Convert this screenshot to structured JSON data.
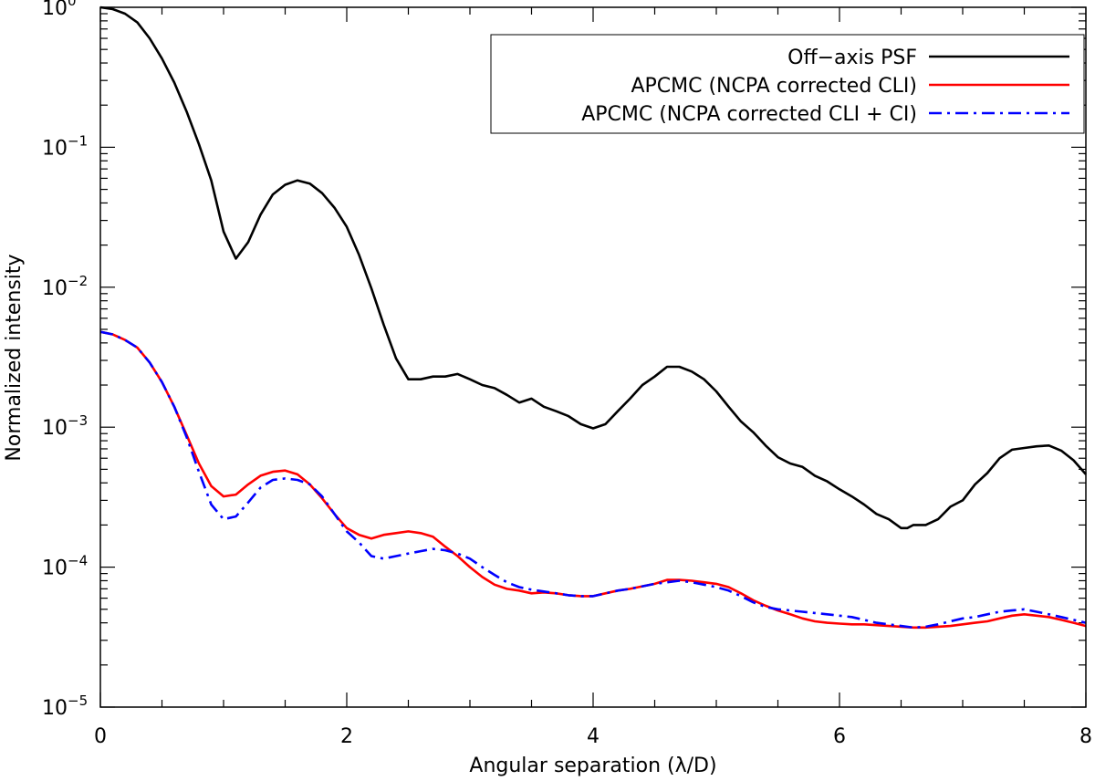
{
  "chart_data": {
    "type": "line",
    "xlabel": "Angular separation (λ/D)",
    "ylabel": "Normalized intensity",
    "xlim": [
      0,
      8
    ],
    "ylim": [
      1e-05,
      1
    ],
    "yscale": "log",
    "x_ticks": [
      {
        "value": 0,
        "label": "0"
      },
      {
        "value": 2,
        "label": "2"
      },
      {
        "value": 4,
        "label": "4"
      },
      {
        "value": 6,
        "label": "6"
      },
      {
        "value": 8,
        "label": "8"
      }
    ],
    "y_ticks": [
      {
        "value": 1,
        "base": "10",
        "exp": "0"
      },
      {
        "value": 0.1,
        "base": "10",
        "exp": "−1"
      },
      {
        "value": 0.01,
        "base": "10",
        "exp": "−2"
      },
      {
        "value": 0.001,
        "base": "10",
        "exp": "−3"
      },
      {
        "value": 0.0001,
        "base": "10",
        "exp": "−4"
      },
      {
        "value": 1e-05,
        "base": "10",
        "exp": "−5"
      }
    ],
    "legend_position": "top-right",
    "series": [
      {
        "name": "Off−axis PSF",
        "color": "#000000",
        "style": "solid",
        "x": [
          0,
          0.1,
          0.2,
          0.3,
          0.4,
          0.5,
          0.6,
          0.7,
          0.8,
          0.9,
          1.0,
          1.1,
          1.2,
          1.3,
          1.4,
          1.5,
          1.6,
          1.7,
          1.8,
          1.9,
          2.0,
          2.1,
          2.2,
          2.3,
          2.4,
          2.5,
          2.6,
          2.7,
          2.8,
          2.9,
          3.0,
          3.1,
          3.2,
          3.3,
          3.4,
          3.5,
          3.6,
          3.7,
          3.8,
          3.9,
          4.0,
          4.1,
          4.2,
          4.3,
          4.4,
          4.5,
          4.6,
          4.7,
          4.8,
          4.9,
          5.0,
          5.1,
          5.2,
          5.3,
          5.4,
          5.5,
          5.6,
          5.7,
          5.8,
          5.9,
          6.0,
          6.1,
          6.2,
          6.3,
          6.4,
          6.5,
          6.55,
          6.6,
          6.7,
          6.8,
          6.9,
          7.0,
          7.1,
          7.2,
          7.3,
          7.4,
          7.5,
          7.6,
          7.7,
          7.8,
          7.9,
          8.0
        ],
        "y": [
          1.0,
          0.97,
          0.9,
          0.78,
          0.6,
          0.43,
          0.29,
          0.18,
          0.105,
          0.058,
          0.025,
          0.016,
          0.021,
          0.033,
          0.046,
          0.054,
          0.058,
          0.055,
          0.047,
          0.037,
          0.027,
          0.017,
          0.0098,
          0.0054,
          0.0031,
          0.0022,
          0.0022,
          0.0023,
          0.0023,
          0.0024,
          0.0022,
          0.002,
          0.0019,
          0.0017,
          0.0015,
          0.0016,
          0.0014,
          0.0013,
          0.0012,
          0.00105,
          0.00098,
          0.00105,
          0.0013,
          0.0016,
          0.002,
          0.0023,
          0.0027,
          0.0027,
          0.0025,
          0.0022,
          0.0018,
          0.0014,
          0.0011,
          0.00092,
          0.00074,
          0.00061,
          0.00055,
          0.00052,
          0.00045,
          0.00041,
          0.00036,
          0.00032,
          0.00028,
          0.00024,
          0.00022,
          0.00019,
          0.00019,
          0.0002,
          0.0002,
          0.00022,
          0.00027,
          0.0003,
          0.00039,
          0.00047,
          0.0006,
          0.00069,
          0.00071,
          0.00073,
          0.00074,
          0.00068,
          0.00058,
          0.00046
        ]
      },
      {
        "name": "APCMC (NCPA corrected CLI)",
        "color": "#ff0000",
        "style": "solid",
        "x": [
          0,
          0.1,
          0.2,
          0.3,
          0.4,
          0.5,
          0.6,
          0.7,
          0.8,
          0.9,
          1.0,
          1.1,
          1.2,
          1.3,
          1.4,
          1.5,
          1.6,
          1.7,
          1.8,
          1.9,
          2.0,
          2.1,
          2.2,
          2.3,
          2.4,
          2.5,
          2.6,
          2.7,
          2.8,
          2.9,
          3.0,
          3.1,
          3.2,
          3.3,
          3.4,
          3.5,
          3.6,
          3.7,
          3.8,
          3.9,
          4.0,
          4.1,
          4.2,
          4.3,
          4.4,
          4.5,
          4.6,
          4.7,
          4.8,
          4.9,
          5.0,
          5.1,
          5.2,
          5.3,
          5.4,
          5.5,
          5.6,
          5.7,
          5.8,
          5.9,
          6.0,
          6.1,
          6.2,
          6.3,
          6.4,
          6.5,
          6.6,
          6.7,
          6.8,
          6.9,
          7.0,
          7.1,
          7.2,
          7.3,
          7.4,
          7.5,
          7.6,
          7.7,
          7.8,
          7.9,
          8.0
        ],
        "y": [
          0.0048,
          0.0046,
          0.0042,
          0.0037,
          0.0029,
          0.0021,
          0.0014,
          0.00088,
          0.00055,
          0.00038,
          0.00032,
          0.00033,
          0.00039,
          0.00045,
          0.00048,
          0.00049,
          0.00046,
          0.00039,
          0.00031,
          0.00024,
          0.00019,
          0.00017,
          0.00016,
          0.00017,
          0.000175,
          0.00018,
          0.000175,
          0.000165,
          0.00014,
          0.00012,
          0.0001,
          8.5e-05,
          7.5e-05,
          7e-05,
          6.8e-05,
          6.5e-05,
          6.6e-05,
          6.5e-05,
          6.3e-05,
          6.2e-05,
          6.2e-05,
          6.5e-05,
          6.8e-05,
          7e-05,
          7.3e-05,
          7.6e-05,
          8.1e-05,
          8.1e-05,
          8e-05,
          7.8e-05,
          7.6e-05,
          7.2e-05,
          6.5e-05,
          5.8e-05,
          5.3e-05,
          4.9e-05,
          4.6e-05,
          4.3e-05,
          4.1e-05,
          4e-05,
          3.95e-05,
          3.9e-05,
          3.9e-05,
          3.85e-05,
          3.8e-05,
          3.75e-05,
          3.7e-05,
          3.7e-05,
          3.75e-05,
          3.8e-05,
          3.9e-05,
          4e-05,
          4.1e-05,
          4.3e-05,
          4.5e-05,
          4.6e-05,
          4.5e-05,
          4.4e-05,
          4.2e-05,
          4e-05,
          3.8e-05
        ]
      },
      {
        "name": "APCMC (NCPA corrected CLI + CI)",
        "color": "#0000ff",
        "style": "dashdot",
        "x": [
          0,
          0.1,
          0.2,
          0.3,
          0.4,
          0.5,
          0.6,
          0.7,
          0.8,
          0.9,
          1.0,
          1.1,
          1.2,
          1.3,
          1.4,
          1.5,
          1.6,
          1.7,
          1.8,
          1.9,
          2.0,
          2.1,
          2.2,
          2.3,
          2.4,
          2.5,
          2.6,
          2.7,
          2.8,
          2.9,
          3.0,
          3.1,
          3.2,
          3.3,
          3.4,
          3.5,
          3.6,
          3.7,
          3.8,
          3.9,
          4.0,
          4.1,
          4.2,
          4.3,
          4.4,
          4.5,
          4.6,
          4.7,
          4.8,
          4.9,
          5.0,
          5.1,
          5.2,
          5.3,
          5.4,
          5.5,
          5.6,
          5.7,
          5.8,
          5.9,
          6.0,
          6.1,
          6.2,
          6.3,
          6.4,
          6.5,
          6.6,
          6.7,
          6.8,
          6.9,
          7.0,
          7.1,
          7.2,
          7.3,
          7.4,
          7.5,
          7.6,
          7.7,
          7.8,
          7.9,
          8.0
        ],
        "y": [
          0.0048,
          0.0046,
          0.0042,
          0.0037,
          0.0029,
          0.0021,
          0.0014,
          0.00085,
          0.00048,
          0.00028,
          0.00022,
          0.00023,
          0.00029,
          0.00037,
          0.00042,
          0.00043,
          0.00042,
          0.00039,
          0.00032,
          0.00024,
          0.00018,
          0.00015,
          0.00012,
          0.000115,
          0.00012,
          0.000125,
          0.00013,
          0.000135,
          0.000132,
          0.000125,
          0.000115,
          0.0001,
          8.8e-05,
          7.8e-05,
          7.2e-05,
          6.9e-05,
          6.7e-05,
          6.5e-05,
          6.3e-05,
          6.2e-05,
          6.2e-05,
          6.5e-05,
          6.8e-05,
          7e-05,
          7.3e-05,
          7.6e-05,
          7.8e-05,
          8e-05,
          7.8e-05,
          7.5e-05,
          7.2e-05,
          6.8e-05,
          6.2e-05,
          5.6e-05,
          5.2e-05,
          5e-05,
          4.9e-05,
          4.8e-05,
          4.7e-05,
          4.6e-05,
          4.5e-05,
          4.4e-05,
          4.2e-05,
          4e-05,
          3.9e-05,
          3.8e-05,
          3.7e-05,
          3.75e-05,
          3.9e-05,
          4.1e-05,
          4.3e-05,
          4.4e-05,
          4.6e-05,
          4.8e-05,
          4.9e-05,
          5e-05,
          4.8e-05,
          4.6e-05,
          4.4e-05,
          4.2e-05,
          4e-05
        ]
      }
    ]
  }
}
